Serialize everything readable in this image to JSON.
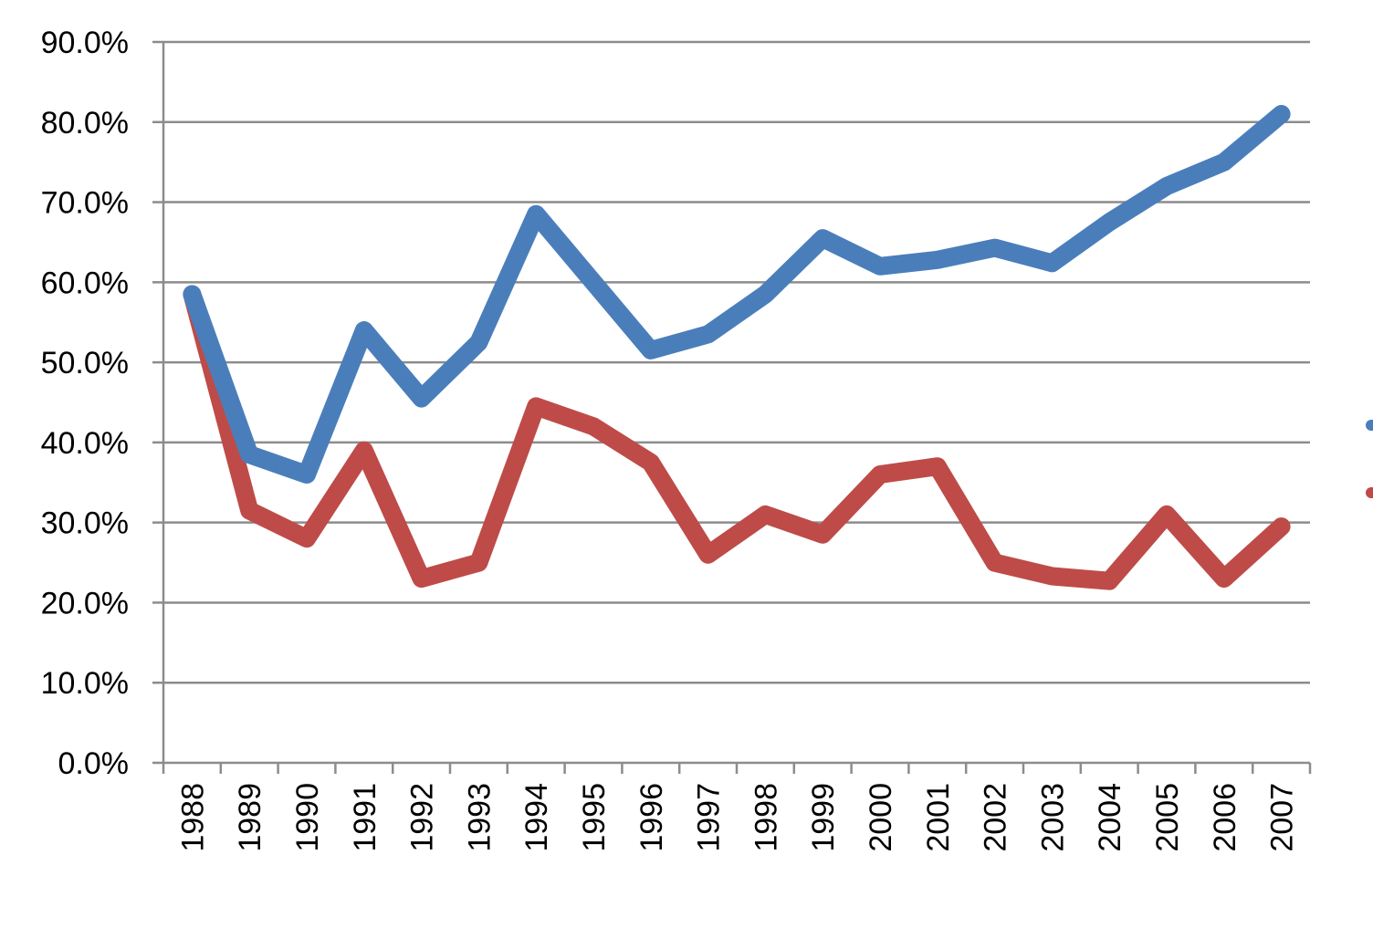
{
  "chart_data": {
    "type": "line",
    "title": "",
    "xlabel": "",
    "ylabel": "",
    "categories": [
      "1988",
      "1989",
      "1990",
      "1991",
      "1992",
      "1993",
      "1994",
      "1995",
      "1996",
      "1997",
      "1998",
      "1999",
      "2000",
      "2001",
      "2002",
      "2003",
      "2004",
      "2005",
      "2006",
      "2007"
    ],
    "y_ticks": [
      "0.0%",
      "10.0%",
      "20.0%",
      "30.0%",
      "40.0%",
      "50.0%",
      "60.0%",
      "70.0%",
      "80.0%",
      "90.0%"
    ],
    "ylim": [
      0,
      90
    ],
    "grid": true,
    "legend_position": "right",
    "series": [
      {
        "color": "#4a7ebb",
        "values": [
          58.5,
          38.5,
          36.0,
          54.0,
          45.5,
          52.5,
          68.5,
          60.0,
          51.5,
          53.5,
          58.5,
          65.5,
          62.0,
          62.8,
          64.3,
          62.4,
          67.5,
          72.0,
          75.0,
          81.0
        ]
      },
      {
        "color": "#be4b48",
        "values": [
          58.5,
          31.5,
          28.0,
          39.0,
          23.0,
          25.0,
          44.5,
          42.0,
          37.5,
          26.0,
          31.0,
          28.5,
          36.0,
          37.0,
          25.0,
          23.3,
          22.7,
          31.0,
          23.0,
          29.5
        ]
      }
    ]
  }
}
